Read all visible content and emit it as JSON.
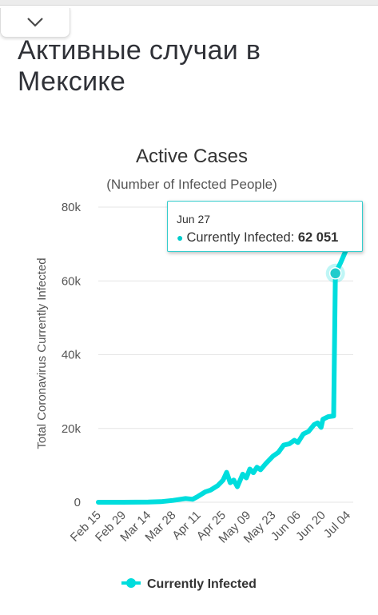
{
  "page": {
    "title": "Активные случаи в Мексике",
    "collapse_icon": "chevron-down-icon"
  },
  "colors": {
    "series": "#00dddd",
    "tooltip_border": "#33cccc",
    "grid": "#e6e6e6",
    "text": "#333333"
  },
  "tooltip": {
    "date": "Jun 27",
    "series_label": "Currently Infected:",
    "value": "62 051"
  },
  "chart_data": {
    "type": "line",
    "title": "Active Cases",
    "subtitle": "(Number of Infected People)",
    "ylabel": "Total Coronavirus Currently Infected",
    "xlabel": "",
    "ylim": [
      0,
      80000
    ],
    "yticks": [
      0,
      20000,
      40000,
      60000,
      80000
    ],
    "ytick_labels": [
      "0",
      "20k",
      "40k",
      "60k",
      "80k"
    ],
    "xtick_labels": [
      "Feb 15",
      "Feb 29",
      "Mar 14",
      "Mar 28",
      "Apr 11",
      "Apr 25",
      "May 09",
      "May 23",
      "Jun 06",
      "Jun 20",
      "Jul 04"
    ],
    "grid": true,
    "legend": "bottom",
    "highlight": {
      "x": "Jun 27",
      "y": 62051
    },
    "series": [
      {
        "name": "Currently Infected",
        "color": "#00dddd",
        "points": [
          {
            "x": "Feb 15",
            "y": 0
          },
          {
            "x": "Feb 29",
            "y": 0
          },
          {
            "x": "Mar 14",
            "y": 50
          },
          {
            "x": "Mar 21",
            "y": 150
          },
          {
            "x": "Mar 28",
            "y": 500
          },
          {
            "x": "Apr 04",
            "y": 1000
          },
          {
            "x": "Apr 08",
            "y": 800
          },
          {
            "x": "Apr 11",
            "y": 1600
          },
          {
            "x": "Apr 15",
            "y": 2800
          },
          {
            "x": "Apr 18",
            "y": 3300
          },
          {
            "x": "Apr 22",
            "y": 4500
          },
          {
            "x": "Apr 25",
            "y": 6000
          },
          {
            "x": "Apr 27",
            "y": 8100
          },
          {
            "x": "Apr 29",
            "y": 5300
          },
          {
            "x": "May 01",
            "y": 6000
          },
          {
            "x": "May 03",
            "y": 4200
          },
          {
            "x": "May 06",
            "y": 7600
          },
          {
            "x": "May 08",
            "y": 6600
          },
          {
            "x": "May 10",
            "y": 9000
          },
          {
            "x": "May 12",
            "y": 8000
          },
          {
            "x": "May 14",
            "y": 9500
          },
          {
            "x": "May 16",
            "y": 8800
          },
          {
            "x": "May 19",
            "y": 10500
          },
          {
            "x": "May 23",
            "y": 12500
          },
          {
            "x": "May 26",
            "y": 13500
          },
          {
            "x": "May 29",
            "y": 15500
          },
          {
            "x": "Jun 01",
            "y": 15800
          },
          {
            "x": "Jun 04",
            "y": 16800
          },
          {
            "x": "Jun 06",
            "y": 16200
          },
          {
            "x": "Jun 09",
            "y": 18500
          },
          {
            "x": "Jun 12",
            "y": 19200
          },
          {
            "x": "Jun 15",
            "y": 21000
          },
          {
            "x": "Jun 17",
            "y": 21500
          },
          {
            "x": "Jun 19",
            "y": 20300
          },
          {
            "x": "Jun 20",
            "y": 22500
          },
          {
            "x": "Jun 23",
            "y": 23200
          },
          {
            "x": "Jun 26",
            "y": 23400
          },
          {
            "x": "Jun 27",
            "y": 62051
          },
          {
            "x": "Jun 30",
            "y": 65000
          },
          {
            "x": "Jul 04",
            "y": 69500
          }
        ]
      }
    ]
  }
}
